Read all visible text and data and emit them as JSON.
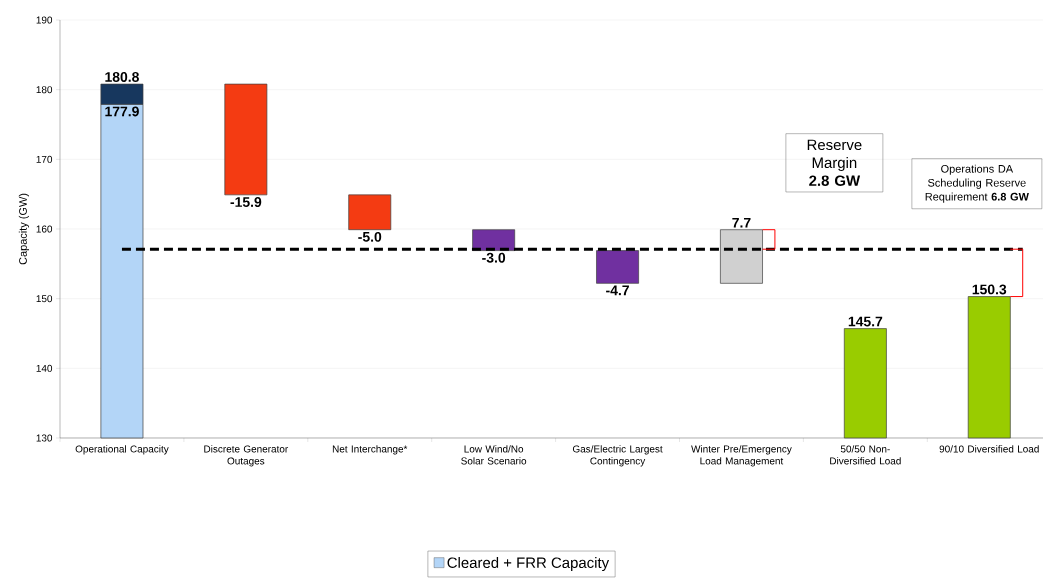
{
  "chart_data": {
    "type": "bar",
    "ylabel": "Capacity (GW)",
    "categories": [
      "Operational Capacity",
      "Discrete Generator Outages",
      "Net Interchange*",
      "Low Wind/No Solar Scenario",
      "Gas/Electric Largest Contingency",
      "Winter Pre/Emergency Load Management",
      "50/50 Non-Diversified Load",
      "90/10 Diversified Load"
    ],
    "series": [
      {
        "name": "Cleared + FRR Capacity",
        "color": "#b3d5f7",
        "colors": [
          "#b3d5f7",
          "#f43b12",
          "#f43b12",
          "#7030a0",
          "#7030a0",
          "#d0d0d0",
          "#99cc00",
          "#99cc00"
        ],
        "values": [
          47.9,
          -15.9,
          -5.0,
          -3.0,
          -4.7,
          7.7,
          15.7,
          20.3
        ],
        "base": [
          130,
          180.8,
          164.9,
          159.9,
          156.9,
          152.2,
          130,
          130
        ],
        "value_labels": [
          "177.9",
          "-15.9",
          "-5.0",
          "-3.0",
          "-4.7",
          "7.7",
          "145.7",
          "150.3"
        ]
      },
      {
        "color": "#17375e",
        "values": [
          2.9,
          null,
          null,
          null,
          null,
          null,
          null,
          null
        ],
        "base": [
          177.9,
          null,
          null,
          null,
          null,
          null,
          null,
          null
        ],
        "value_labels": [
          "180.8",
          null,
          null,
          null,
          null,
          null,
          null,
          null
        ]
      }
    ],
    "ylim": [
      130,
      190
    ],
    "yticks": [
      130,
      140,
      150,
      160,
      170,
      180,
      190
    ],
    "grid": "y",
    "legend": "bottom",
    "ref_lines": [
      {
        "axis": "y",
        "value": 157.1,
        "color": "#000000",
        "line_style": "dashed"
      }
    ],
    "annotations": [
      "Reserve Margin **2.8 GW**",
      "Operations DA Scheduling Reserve Requirement **6.8 GW**"
    ]
  }
}
